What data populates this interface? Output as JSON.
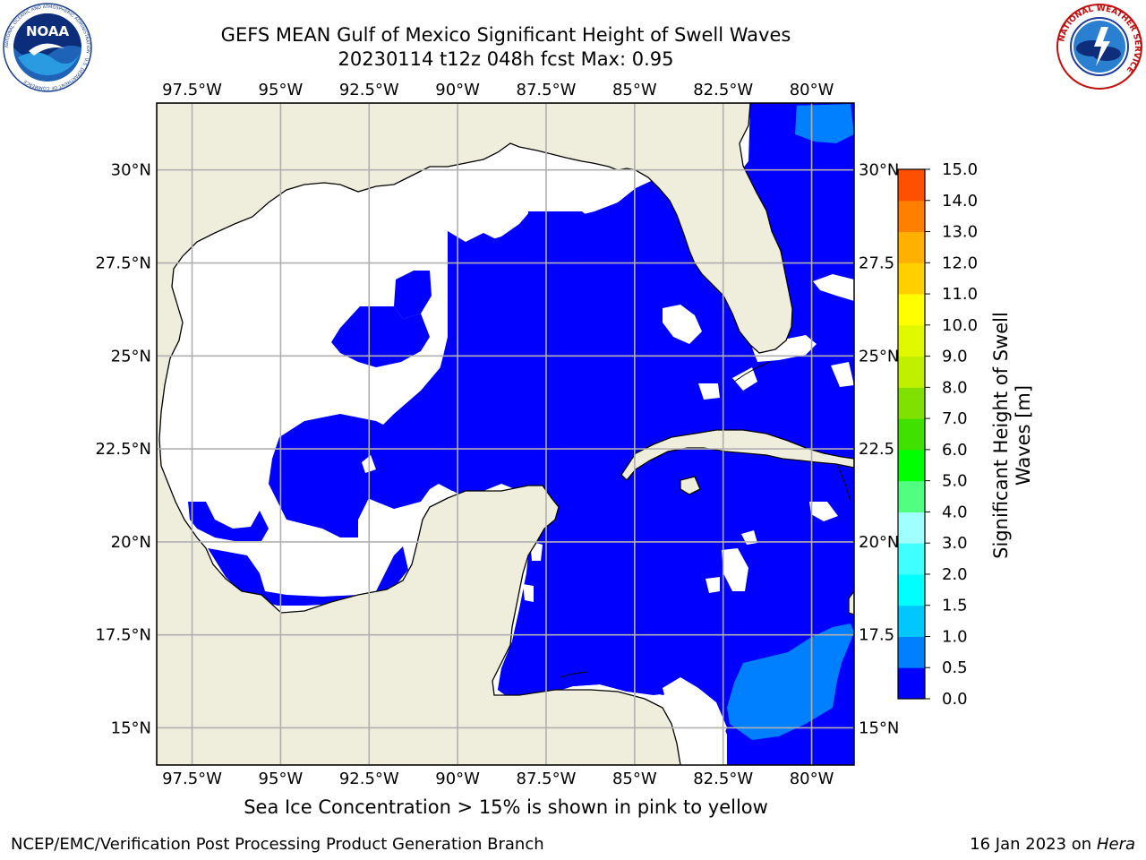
{
  "title_line1": "GEFS MEAN Gulf of Mexico Significant Height of Swell Waves",
  "title_line2": "20230114 t12z 048h fcst   Max: 0.95",
  "note": "Sea Ice Concentration > 15% is shown in pink to yellow",
  "footer_left": "NCEP/EMC/Verification Post Processing Product Generation Branch",
  "footer_date": "16 Jan 2023 on",
  "footer_machine": "Hera",
  "noaa_logo_text": "NOAA",
  "noaa_ring_text": "NATIONAL OCEANIC AND ATMOSPHERIC ADMINISTRATION · U.S. DEPARTMENT OF COMMERCE",
  "nws_ring_text": "NATIONAL WEATHER SERVICE",
  "map": {
    "lon_range": [
      -98.5,
      -78.8
    ],
    "lat_range": [
      14.0,
      31.8
    ],
    "lon_ticks": [
      "97.5°W",
      "95°W",
      "92.5°W",
      "90°W",
      "87.5°W",
      "85°W",
      "82.5°W",
      "80°W"
    ],
    "lat_ticks_left": [
      "30°N",
      "27.5°N",
      "25°N",
      "22.5°N",
      "20°N",
      "17.5°N",
      "15°N"
    ],
    "lat_ticks_right": [
      "30°N",
      "27.5",
      "25°N",
      "22.5",
      "20°N",
      "17.5",
      "15°N"
    ],
    "colors": {
      "land": "#efeddc",
      "grid": "#b0b0b0",
      "coast": "#000000"
    }
  },
  "colorbar": {
    "label_line1": "Significant Height of Swell",
    "label_line2": "Waves [m]",
    "ticks": [
      "0.0",
      "0.5",
      "1.0",
      "1.5",
      "2.0",
      "3.0",
      "4.0",
      "5.0",
      "6.0",
      "7.0",
      "8.0",
      "9.0",
      "10.0",
      "11.0",
      "12.0",
      "13.0",
      "14.0",
      "15.0"
    ],
    "colors": [
      "#0000ff",
      "#0080ff",
      "#00c8ff",
      "#00ffff",
      "#40ffff",
      "#a0ffff",
      "#50ff80",
      "#00ff00",
      "#40e000",
      "#80e000",
      "#c0f000",
      "#e0f800",
      "#ffff00",
      "#ffd000",
      "#ffb000",
      "#ff8000",
      "#ff5000",
      "#ff2000",
      "#ff0000"
    ]
  }
}
